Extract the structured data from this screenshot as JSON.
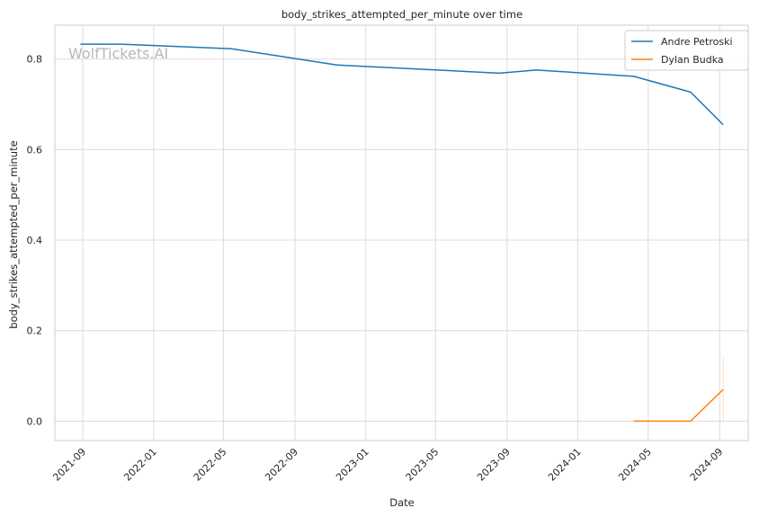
{
  "chart_data": {
    "type": "line",
    "title": "body_strikes_attempted_per_minute over time",
    "xlabel": "Date",
    "ylabel": "body_strikes_attempted_per_minute",
    "watermark": "WolfTickets.AI",
    "xlim": [
      "2021-07-15",
      "2024-10-20"
    ],
    "ylim": [
      -0.043,
      0.875
    ],
    "x_ticks": [
      "2021-09-01",
      "2022-01-01",
      "2022-05-01",
      "2022-09-01",
      "2023-01-01",
      "2023-05-01",
      "2023-09-01",
      "2024-01-01",
      "2024-05-01",
      "2024-09-01"
    ],
    "x_tick_labels": [
      "2021-09",
      "2022-01",
      "2022-05",
      "2022-09",
      "2023-01",
      "2023-05",
      "2023-09",
      "2024-01",
      "2024-05",
      "2024-09"
    ],
    "y_ticks": [
      0.0,
      0.2,
      0.4,
      0.6,
      0.8
    ],
    "y_tick_labels": [
      "0.0",
      "0.2",
      "0.4",
      "0.6",
      "0.8"
    ],
    "grid": true,
    "legend_position": "top-right",
    "series": [
      {
        "name": "Andre Petroski",
        "color": "#1f77b4",
        "x": [
          "2021-08-28",
          "2021-11-06",
          "2022-05-14",
          "2022-11-12",
          "2023-08-19",
          "2023-10-21",
          "2024-04-06",
          "2024-07-13",
          "2024-09-07"
        ],
        "values": [
          0.833,
          0.833,
          0.823,
          0.787,
          0.769,
          0.776,
          0.762,
          0.727,
          0.655
        ]
      },
      {
        "name": "Dylan Budka",
        "color": "#ff7f0e",
        "x": [
          "2024-04-06",
          "2024-07-13",
          "2024-09-07"
        ],
        "values": [
          0.0,
          0.0,
          0.07
        ],
        "band": {
          "x": "2024-09-07",
          "low": 0.0,
          "high": 0.14
        }
      }
    ]
  }
}
